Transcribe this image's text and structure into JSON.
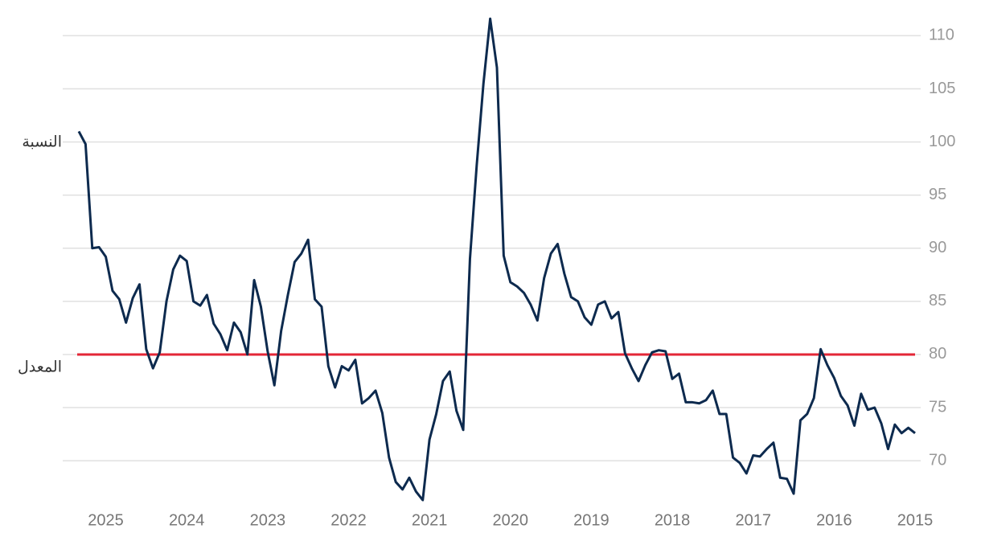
{
  "chart_data": {
    "type": "line",
    "categories": [
      "2015",
      null,
      null,
      null,
      null,
      null,
      null,
      null,
      null,
      null,
      null,
      null,
      "2016",
      null,
      null,
      null,
      null,
      null,
      null,
      null,
      null,
      null,
      null,
      null,
      "2017",
      null,
      null,
      null,
      null,
      null,
      null,
      null,
      null,
      null,
      null,
      null,
      "2018",
      null,
      null,
      null,
      null,
      null,
      null,
      null,
      null,
      null,
      null,
      null,
      "2019",
      null,
      null,
      null,
      null,
      null,
      null,
      null,
      null,
      null,
      null,
      null,
      "2020",
      null,
      null,
      null,
      null,
      null,
      null,
      null,
      null,
      null,
      null,
      null,
      "2021",
      null,
      null,
      null,
      null,
      null,
      null,
      null,
      null,
      null,
      null,
      null,
      "2022",
      null,
      null,
      null,
      null,
      null,
      null,
      null,
      null,
      null,
      null,
      null,
      "2023",
      null,
      null,
      null,
      null,
      null,
      null,
      null,
      null,
      null,
      null,
      null,
      "2024",
      null,
      null,
      null,
      null,
      null,
      null,
      null,
      null,
      null,
      null,
      null,
      "2025",
      null,
      null,
      null,
      null
    ],
    "x_reversed": true,
    "series": [
      {
        "name": "النسبة",
        "color": "#0d2a4e",
        "values": [
          72.6,
          73.1,
          72.6,
          73.4,
          71.1,
          73.5,
          75,
          74.8,
          76.3,
          73.3,
          75.2,
          76.1,
          77.8,
          79,
          80.5,
          75.9,
          74.4,
          73.8,
          66.9,
          68.3,
          68.4,
          71.7,
          71.1,
          70.4,
          70.5,
          68.8,
          69.8,
          70.3,
          74.4,
          74.4,
          76.6,
          75.7,
          75.4,
          75.5,
          75.5,
          78.2,
          77.7,
          80.3,
          80.4,
          80.2,
          79,
          77.5,
          78.7,
          80.1,
          84,
          83.4,
          85,
          84.7,
          82.8,
          83.5,
          85,
          85.4,
          87.6,
          90.4,
          89.5,
          87.2,
          83.2,
          84.7,
          85.8,
          86.4,
          86.8,
          89.3,
          107,
          111.6,
          105.5,
          97.8,
          89,
          72.9,
          74.7,
          78.4,
          77.5,
          74.4,
          72,
          66.3,
          67.1,
          68.4,
          67.3,
          68,
          70.3,
          74.5,
          76.6,
          75.9,
          75.4,
          79.5,
          78.5,
          78.9,
          76.9,
          78.9,
          84.5,
          85.2,
          90.8,
          89.5,
          88.7,
          85.6,
          82.2,
          77.1,
          80.3,
          84.5,
          87,
          80,
          82.1,
          83,
          80.4,
          81.9,
          82.9,
          85.6,
          84.6,
          85,
          88.8,
          89.3,
          88,
          85,
          80.2,
          78.7,
          80.5,
          86.6,
          85.3,
          83,
          85.2,
          86,
          89.2,
          90.1,
          90,
          99.8,
          101
        ]
      }
    ],
    "reference_line": {
      "value": 80,
      "color": "#e32636",
      "label": "المعدل"
    },
    "ylim": [
      66,
      112
    ],
    "yticks": [
      70,
      75,
      80,
      85,
      90,
      95,
      100,
      105,
      110
    ],
    "grid": true,
    "y_axis_side": "right"
  }
}
